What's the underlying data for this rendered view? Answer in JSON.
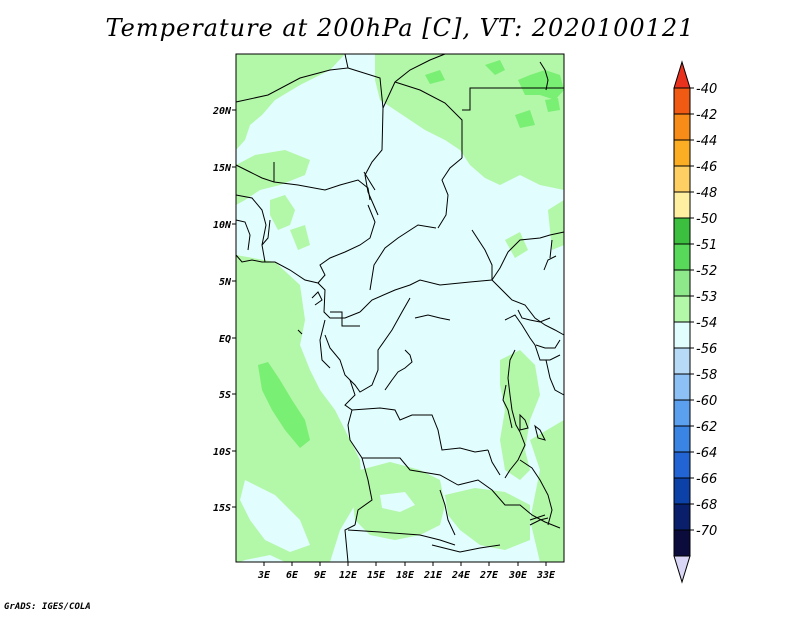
{
  "title": "Temperature at 200hPa [C], VT: 2020100121",
  "credit": "GrADS: IGES/COLA",
  "map": {
    "lat_labels": [
      "20N",
      "15N",
      "10N",
      "5N",
      "EQ",
      "5S",
      "10S",
      "15S"
    ],
    "lon_labels": [
      "3E",
      "6E",
      "9E",
      "12E",
      "15E",
      "18E",
      "21E",
      "24E",
      "27E",
      "30E",
      "33E"
    ],
    "fill_colors": {
      "minus54": "#e1fdfd",
      "minus53": "#b3f7a8",
      "minus52": "#79ef73"
    }
  },
  "colorbar": {
    "labels": [
      "-40",
      "-42",
      "-44",
      "-46",
      "-48",
      "-50",
      "-51",
      "-52",
      "-53",
      "-54",
      "-56",
      "-58",
      "-60",
      "-62",
      "-64",
      "-66",
      "-68",
      "-70"
    ],
    "colors": [
      "#e8321e",
      "#f15a13",
      "#f78c18",
      "#fbae24",
      "#fed063",
      "#fef0a0",
      "#3cbf3e",
      "#58d95a",
      "#8ee98b",
      "#b3f7a8",
      "#e1fdfd",
      "#b7dbf7",
      "#8dc0f4",
      "#5ba0ee",
      "#3a84e3",
      "#2264d4",
      "#0c41a8",
      "#0a1f6b",
      "#0b0b3c",
      "#d9d7f5"
    ]
  }
}
